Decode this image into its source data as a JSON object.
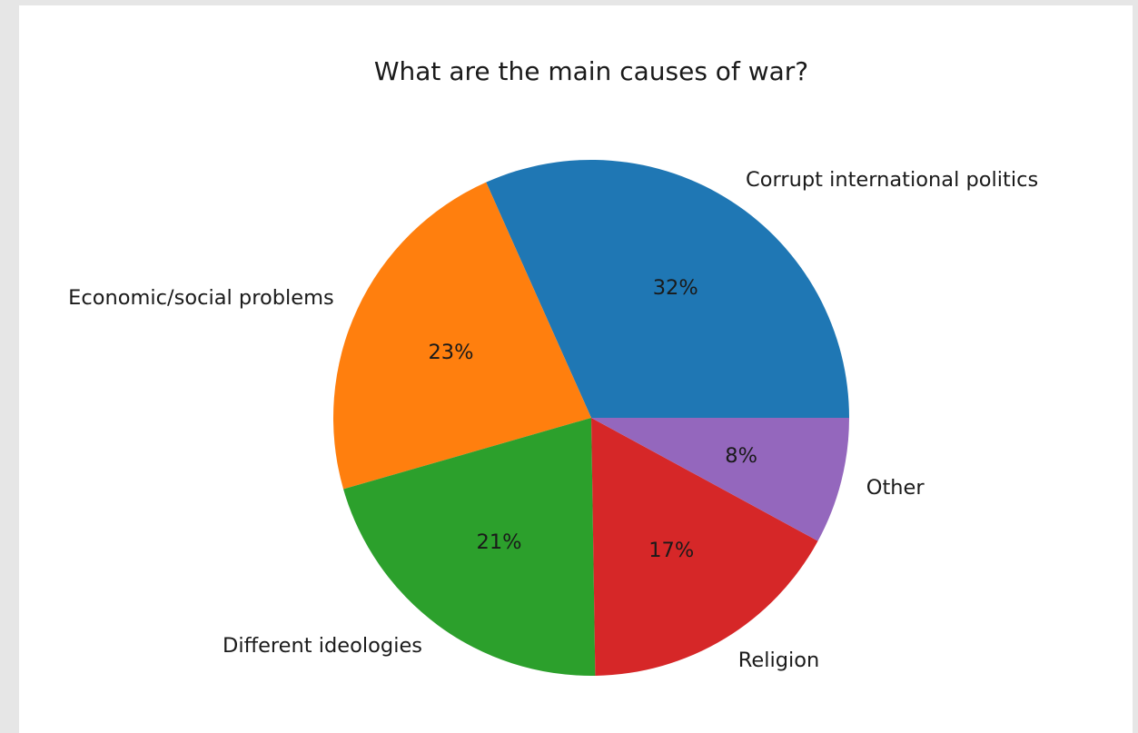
{
  "chart_data": {
    "type": "pie",
    "title": "What are the main causes of war?",
    "slices": [
      {
        "label": "Corrupt international politics",
        "value": 32,
        "pct_label": "32%",
        "color": "#1f77b4"
      },
      {
        "label": "Economic/social problems",
        "value": 23,
        "pct_label": "23%",
        "color": "#ff7f0e"
      },
      {
        "label": "Different ideologies",
        "value": 21,
        "pct_label": "21%",
        "color": "#2ca02c"
      },
      {
        "label": "Religion",
        "value": 17,
        "pct_label": "17%",
        "color": "#d62728"
      },
      {
        "label": "Other",
        "value": 8,
        "pct_label": "8%",
        "color": "#9467bd"
      }
    ],
    "start_angle_deg": 0,
    "direction": "counterclockwise",
    "legend": "none"
  }
}
